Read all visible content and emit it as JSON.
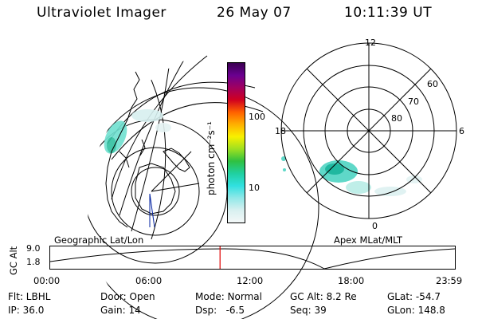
{
  "header": {
    "title": "Ultraviolet Imager",
    "date": "26 May 07",
    "time": "10:11:39 UT"
  },
  "colorbar": {
    "label": "photon cm⁻²s⁻¹",
    "ticks": [
      "100",
      "10"
    ],
    "colors": [
      "#3a0050",
      "#6a0090",
      "#a00060",
      "#d00020",
      "#ff6000",
      "#ffb000",
      "#f8f000",
      "#a0e020",
      "#30c040",
      "#20d0a0",
      "#30e0e0",
      "#90e8e8",
      "#d8f0f0",
      "#f4f8f8"
    ]
  },
  "map_labels": {
    "left": "Geographic Lat/Lon",
    "right": "Apex MLat/MLT"
  },
  "polar_labels": {
    "mlt_top": "12",
    "mlt_left": "18",
    "mlt_right": "6",
    "mlt_bottom": "0",
    "lat_60": "60",
    "lat_70": "70",
    "lat_80": "80"
  },
  "altitude_plot": {
    "ylabel": "GC Alt",
    "yticks": [
      "9.0",
      "1.8"
    ],
    "xticks": [
      "00:00",
      "06:00",
      "12:00",
      "18:00",
      "23:59"
    ],
    "marker_fraction": 0.42,
    "marker_color": "#e00000",
    "line_color": "#000000"
  },
  "info": {
    "flt": "Flt: LBHL",
    "ip": "IP: 36.0",
    "door": "Door: Open",
    "gain": "Gain: 14",
    "mode": "Mode: Normal",
    "dsp": "Dsp:   -6.5",
    "gc_alt": "GC Alt: 8.2 Re",
    "seq": "Seq: 39",
    "glat": "GLat: -54.7",
    "glon": "GLon: 148.8"
  }
}
